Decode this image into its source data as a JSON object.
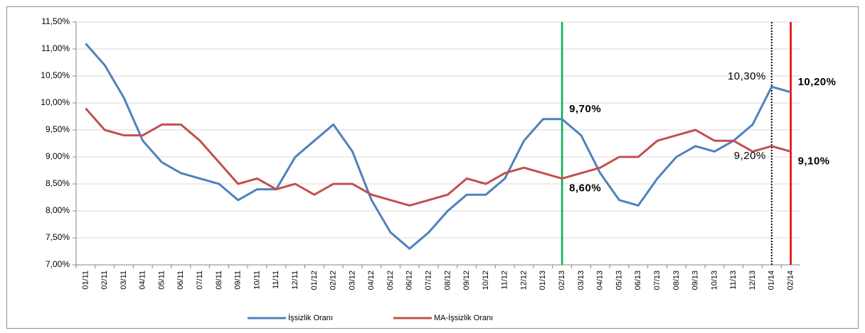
{
  "chart_data": {
    "type": "line",
    "categories": [
      "01/11",
      "02/11",
      "03/11",
      "04/11",
      "05/11",
      "06/11",
      "07/11",
      "08/11",
      "09/11",
      "10/11",
      "11/11",
      "12/11",
      "01/12",
      "02/12",
      "03/12",
      "04/12",
      "05/12",
      "06/12",
      "07/12",
      "08/12",
      "09/12",
      "10/12",
      "11/12",
      "12/12",
      "01/13",
      "02/13",
      "03/13",
      "04/13",
      "05/13",
      "06/13",
      "07/13",
      "08/13",
      "09/13",
      "10/13",
      "11/13",
      "12/13",
      "01/14",
      "02/14"
    ],
    "series": [
      {
        "name": "İşsizlik Oranı",
        "color": "#4f81bd",
        "values": [
          11.1,
          10.7,
          10.1,
          9.3,
          8.9,
          8.7,
          8.6,
          8.5,
          8.2,
          8.4,
          8.4,
          9.0,
          9.3,
          9.6,
          9.1,
          8.2,
          7.6,
          7.3,
          7.6,
          8.0,
          8.3,
          8.3,
          8.6,
          9.3,
          9.7,
          9.7,
          9.4,
          8.7,
          8.2,
          8.1,
          8.6,
          9.0,
          9.2,
          9.1,
          9.3,
          9.6,
          10.3,
          10.2
        ]
      },
      {
        "name": "MA-İşsizlik Oranı",
        "color": "#c0504d",
        "values": [
          9.9,
          9.5,
          9.4,
          9.4,
          9.6,
          9.6,
          9.3,
          8.9,
          8.5,
          8.6,
          8.4,
          8.5,
          8.3,
          8.5,
          8.5,
          8.3,
          8.2,
          8.1,
          8.2,
          8.3,
          8.6,
          8.5,
          8.7,
          8.8,
          8.7,
          8.6,
          8.7,
          8.8,
          9.0,
          9.0,
          9.3,
          9.4,
          9.5,
          9.3,
          9.3,
          9.1,
          9.2,
          9.1
        ]
      }
    ],
    "ylim": [
      7.0,
      11.5
    ],
    "yticks": [
      {
        "value": 7.0,
        "label": "7,00%"
      },
      {
        "value": 7.5,
        "label": "7,50%"
      },
      {
        "value": 8.0,
        "label": "8,00%"
      },
      {
        "value": 8.5,
        "label": "8,50%"
      },
      {
        "value": 9.0,
        "label": "9,00%"
      },
      {
        "value": 9.5,
        "label": "9,50%"
      },
      {
        "value": 10.0,
        "label": "10,00%"
      },
      {
        "value": 10.5,
        "label": "10,50%"
      },
      {
        "value": 11.0,
        "label": "11,00%"
      },
      {
        "value": 11.5,
        "label": "11,50%"
      }
    ],
    "grid": true,
    "legend": "bottom",
    "vlines": [
      {
        "category": "02/13",
        "color": "#00b050",
        "style": "solid"
      },
      {
        "category": "01/14",
        "color": "#000000",
        "style": "dotted"
      },
      {
        "category": "02/14",
        "color": "#e00000",
        "style": "solid"
      }
    ],
    "annotations": [
      {
        "category": "02/13",
        "value": 9.7,
        "label": "9,70%",
        "color": "#00b050",
        "bold": true,
        "side": "right"
      },
      {
        "category": "02/13",
        "value": 8.6,
        "label": "8,60%",
        "color": "#00b050",
        "bold": true,
        "side": "right"
      },
      {
        "category": "01/14",
        "value": 10.3,
        "label": "10,30%",
        "color": "#000000",
        "bold": false,
        "side": "left"
      },
      {
        "category": "01/14",
        "value": 9.2,
        "label": "9,20%",
        "color": "#000000",
        "bold": false,
        "side": "left"
      },
      {
        "category": "02/14",
        "value": 10.2,
        "label": "10,20%",
        "color": "#ff0000",
        "bold": true,
        "side": "right"
      },
      {
        "category": "02/14",
        "value": 9.1,
        "label": "9,10%",
        "color": "#ff0000",
        "bold": true,
        "side": "right"
      }
    ]
  }
}
